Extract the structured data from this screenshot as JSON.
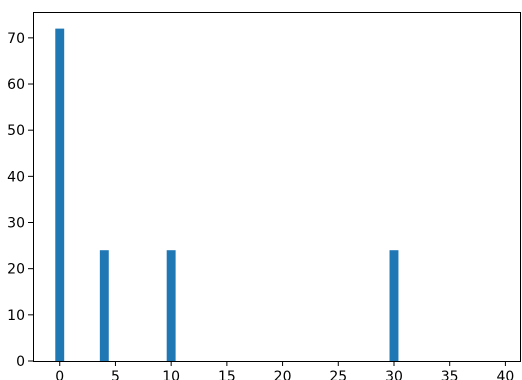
{
  "chart_data": {
    "type": "bar",
    "title": "",
    "xlabel": "",
    "ylabel": "",
    "x": [
      0,
      4,
      10,
      30
    ],
    "values": [
      72,
      24,
      24,
      24
    ],
    "bar_width": 0.8,
    "xlim": [
      -2.4,
      41.4
    ],
    "ylim": [
      0,
      75.6
    ],
    "xticks": [
      0,
      5,
      10,
      15,
      20,
      25,
      30,
      35,
      40
    ],
    "yticks": [
      0,
      10,
      20,
      30,
      40,
      50,
      60,
      70
    ],
    "grid": false,
    "colors": {
      "bar": "#1f77b4",
      "axes": "#000000"
    }
  }
}
